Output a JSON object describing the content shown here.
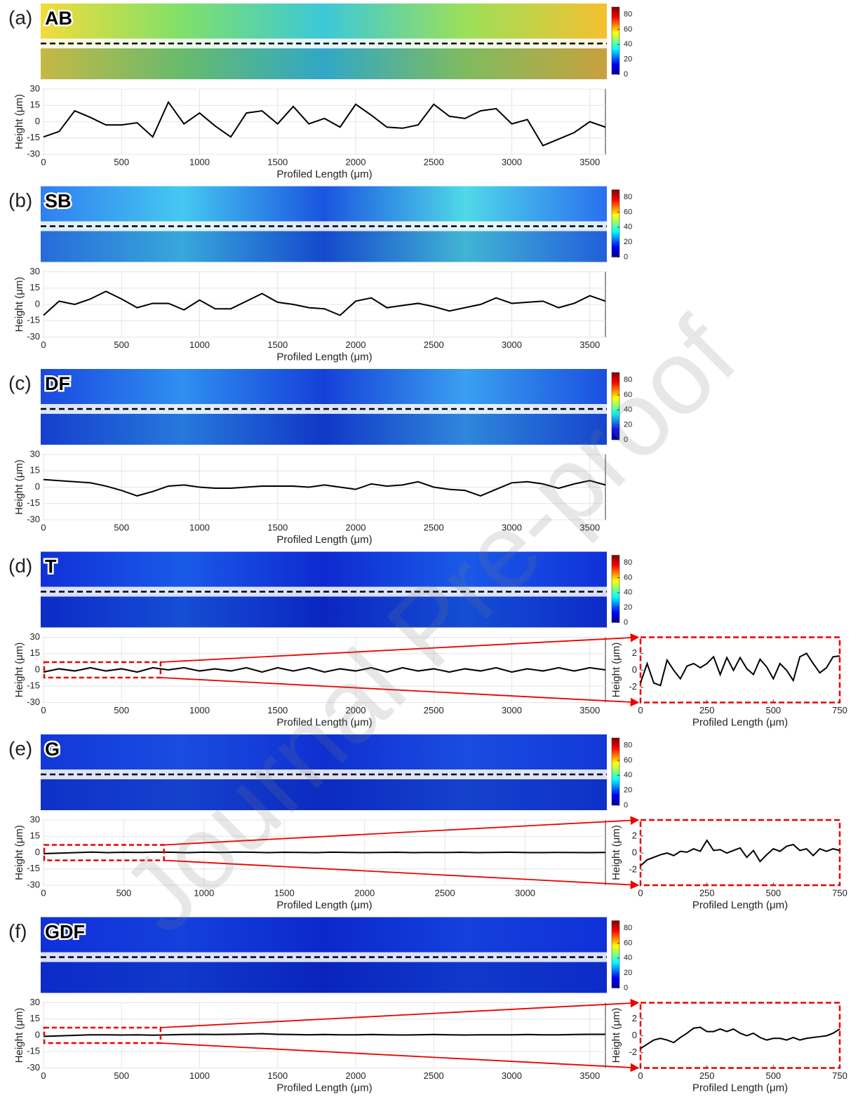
{
  "watermark": "Journal Pre-proof",
  "chart_data": [
    {
      "type": "line",
      "panel": "(a)",
      "sample": "AB",
      "heatmap_colors": [
        "#f2dc3a",
        "#7fe06a",
        "#3cc8d8",
        "#9be05a",
        "#f5c030"
      ],
      "colorbar_lim": [
        0,
        90
      ],
      "colorbar_ticks": [
        0,
        20,
        40,
        60,
        80
      ],
      "xlabel": "Profiled Length (μm)",
      "ylabel": "Height (μm)",
      "grid": true,
      "color": "#000000",
      "xlim": [
        0,
        3600
      ],
      "xticks": [
        0,
        500,
        1000,
        1500,
        2000,
        2500,
        3000,
        3500
      ],
      "ylim": [
        -30,
        30
      ],
      "yticks": [
        -30,
        -15,
        0,
        15,
        30
      ],
      "x": [
        0,
        100,
        200,
        300,
        400,
        500,
        600,
        700,
        800,
        900,
        1000,
        1100,
        1200,
        1300,
        1400,
        1500,
        1600,
        1700,
        1800,
        1900,
        2000,
        2100,
        2200,
        2300,
        2400,
        2500,
        2600,
        2700,
        2800,
        2900,
        3000,
        3100,
        3200,
        3300,
        3400,
        3500,
        3600
      ],
      "values": [
        -14,
        -9,
        10,
        4,
        -3,
        -3,
        -1,
        -14,
        18,
        -2,
        8,
        -4,
        -14,
        8,
        10,
        -2,
        14,
        -2,
        3,
        -5,
        16,
        6,
        -5,
        -6,
        -3,
        16,
        5,
        3,
        10,
        12,
        -2,
        2,
        -22,
        -16,
        -10,
        0,
        -5
      ]
    },
    {
      "type": "line",
      "panel": "(b)",
      "sample": "SB",
      "heatmap_colors": [
        "#2f7ff0",
        "#45c8f0",
        "#1a55e0",
        "#50d8e8",
        "#2a6ff0"
      ],
      "colorbar_lim": [
        0,
        90
      ],
      "colorbar_ticks": [
        0,
        20,
        40,
        60,
        80
      ],
      "xlabel": "Profiled Length (μm)",
      "ylabel": "Height (μm)",
      "grid": true,
      "color": "#000000",
      "xlim": [
        0,
        3600
      ],
      "xticks": [
        0,
        500,
        1000,
        1500,
        2000,
        2500,
        3000,
        3500
      ],
      "ylim": [
        -30,
        30
      ],
      "yticks": [
        -30,
        -15,
        0,
        15,
        30
      ],
      "x": [
        0,
        100,
        200,
        300,
        400,
        500,
        600,
        700,
        800,
        900,
        1000,
        1100,
        1200,
        1300,
        1400,
        1500,
        1600,
        1700,
        1800,
        1900,
        2000,
        2100,
        2200,
        2300,
        2400,
        2500,
        2600,
        2700,
        2800,
        2900,
        3000,
        3100,
        3200,
        3300,
        3400,
        3500,
        3600
      ],
      "values": [
        -10,
        3,
        0,
        5,
        12,
        5,
        -3,
        1,
        1,
        -5,
        4,
        -4,
        -4,
        3,
        10,
        2,
        0,
        -3,
        -4,
        -10,
        3,
        6,
        -3,
        -1,
        1,
        -2,
        -6,
        -3,
        0,
        6,
        1,
        2,
        3,
        -3,
        1,
        8,
        3
      ]
    },
    {
      "type": "line",
      "panel": "(c)",
      "sample": "DF",
      "heatmap_colors": [
        "#1a48e0",
        "#2f8ff0",
        "#1540d8",
        "#3aa0f0",
        "#1a50e0"
      ],
      "colorbar_lim": [
        0,
        90
      ],
      "colorbar_ticks": [
        0,
        20,
        40,
        60,
        80
      ],
      "xlabel": "Profiled Length (μm)",
      "ylabel": "Height (μm)",
      "grid": true,
      "color": "#000000",
      "xlim": [
        0,
        3600
      ],
      "xticks": [
        0,
        500,
        1000,
        1500,
        2000,
        2500,
        3000,
        3500
      ],
      "ylim": [
        -30,
        30
      ],
      "yticks": [
        -30,
        -15,
        0,
        15,
        30
      ],
      "x": [
        0,
        100,
        200,
        300,
        400,
        500,
        600,
        700,
        800,
        900,
        1000,
        1100,
        1200,
        1300,
        1400,
        1500,
        1600,
        1700,
        1800,
        1900,
        2000,
        2100,
        2200,
        2300,
        2400,
        2500,
        2600,
        2700,
        2800,
        2900,
        3000,
        3100,
        3200,
        3300,
        3400,
        3500,
        3600
      ],
      "values": [
        7,
        6,
        5,
        4,
        1,
        -3,
        -8,
        -4,
        1,
        2,
        0,
        -1,
        -1,
        0,
        1,
        1,
        1,
        0,
        2,
        0,
        -2,
        3,
        1,
        2,
        5,
        0,
        -2,
        -3,
        -8,
        -2,
        4,
        5,
        3,
        -1,
        3,
        6,
        2
      ]
    },
    {
      "type": "line",
      "panel": "(d)",
      "sample": "T",
      "heatmap_colors": [
        "#1030d8",
        "#1a5ae8",
        "#0e2ad0",
        "#1a5ae8",
        "#1030d8"
      ],
      "colorbar_lim": [
        0,
        90
      ],
      "colorbar_ticks": [
        0,
        20,
        40,
        60,
        80
      ],
      "xlabel": "Profiled Length (μm)",
      "ylabel": "Height (μm)",
      "grid": true,
      "color": "#000000",
      "xlim": [
        0,
        3600
      ],
      "xticks": [
        0,
        500,
        1000,
        1500,
        2000,
        2500,
        3000,
        3500
      ],
      "ylim": [
        -30,
        30
      ],
      "yticks": [
        -30,
        -15,
        0,
        15,
        30
      ],
      "x": [
        0,
        100,
        200,
        300,
        400,
        500,
        600,
        700,
        800,
        900,
        1000,
        1100,
        1200,
        1300,
        1400,
        1500,
        1600,
        1700,
        1800,
        1900,
        2000,
        2100,
        2200,
        2300,
        2400,
        2500,
        2600,
        2700,
        2800,
        2900,
        3000,
        3100,
        3200,
        3300,
        3400,
        3500,
        3600
      ],
      "values": [
        -2,
        1,
        -1,
        2,
        -1,
        1,
        -2,
        2,
        0,
        2,
        -1,
        1,
        -1,
        2,
        -2,
        2,
        -1,
        2,
        -2,
        1,
        -1,
        2,
        -2,
        2,
        -1,
        1,
        -2,
        1,
        -1,
        2,
        -2,
        1,
        -1,
        2,
        -1,
        2,
        0
      ],
      "inset": {
        "type": "line",
        "xlabel": "Profiled Length (μm)",
        "ylabel": "Height (μm)",
        "grid": false,
        "color": "#000000",
        "xlim": [
          0,
          750
        ],
        "xticks": [
          0,
          250,
          500,
          750
        ],
        "ylim": [
          -3.8,
          3.9
        ],
        "yticks": [
          -2,
          0,
          2
        ],
        "x": [
          0,
          25,
          50,
          75,
          100,
          125,
          150,
          175,
          200,
          225,
          250,
          275,
          300,
          325,
          350,
          375,
          400,
          425,
          450,
          475,
          500,
          525,
          550,
          575,
          600,
          625,
          650,
          675,
          700,
          725,
          750
        ],
        "values": [
          -1.5,
          0.8,
          -1.5,
          -1.8,
          1.2,
          0,
          -1,
          0.5,
          0.8,
          0.3,
          0.8,
          1.6,
          -0.5,
          1.5,
          0,
          1.5,
          0.2,
          -0.5,
          1.3,
          0.4,
          -1,
          0.8,
          0,
          -1.2,
          1.6,
          2,
          0.8,
          -0.3,
          0.3,
          1.6,
          1.7
        ]
      }
    },
    {
      "type": "line",
      "panel": "(e)",
      "sample": "G",
      "heatmap_colors": [
        "#1238d8",
        "#1a4ce0",
        "#0f30d0",
        "#1a4ce0",
        "#1238d8"
      ],
      "colorbar_lim": [
        0,
        90
      ],
      "colorbar_ticks": [
        0,
        20,
        40,
        60,
        80
      ],
      "xlabel": "Profiled Length (μm)",
      "ylabel": "Height (μm)",
      "grid": true,
      "color": "#000000",
      "xlim": [
        0,
        3500
      ],
      "xticks": [
        0,
        500,
        1000,
        1500,
        2000,
        2500,
        3000
      ],
      "ylim": [
        -30,
        30
      ],
      "yticks": [
        -30,
        -15,
        0,
        15,
        30
      ],
      "x": [
        0,
        100,
        200,
        300,
        400,
        500,
        600,
        700,
        800,
        900,
        1000,
        1100,
        1200,
        1300,
        1400,
        1500,
        1600,
        1700,
        1800,
        1900,
        2000,
        2100,
        2200,
        2300,
        2400,
        2500,
        2600,
        2700,
        2800,
        2900,
        3000,
        3100,
        3200,
        3300,
        3400,
        3500
      ],
      "values": [
        -1,
        -0.5,
        0,
        0.5,
        0,
        0.3,
        0.2,
        0.5,
        0.3,
        0,
        0.4,
        0.2,
        0.5,
        0.3,
        0,
        0.3,
        0.2,
        0,
        0.4,
        0.2,
        0,
        0.2,
        0.3,
        0,
        0.2,
        0.1,
        0.3,
        0,
        0.2,
        0.3,
        0.1,
        0,
        0.2,
        0.1,
        0,
        0.2
      ],
      "inset": {
        "type": "line",
        "xlabel": "Profiled Length (μm)",
        "ylabel": "Height (μm)",
        "grid": false,
        "color": "#000000",
        "xlim": [
          0,
          750
        ],
        "xticks": [
          0,
          250,
          500,
          750
        ],
        "ylim": [
          -3.8,
          3.9
        ],
        "yticks": [
          -2,
          0,
          2
        ],
        "x": [
          0,
          25,
          50,
          75,
          100,
          125,
          150,
          175,
          200,
          225,
          250,
          275,
          300,
          325,
          350,
          375,
          400,
          425,
          450,
          475,
          500,
          525,
          550,
          575,
          600,
          625,
          650,
          675,
          700,
          725,
          750
        ],
        "values": [
          -1.5,
          -0.8,
          -0.5,
          -0.2,
          0,
          -0.3,
          0.2,
          0.1,
          0.5,
          0.2,
          1.5,
          0.3,
          0.4,
          0,
          0.3,
          0.6,
          -0.5,
          0.3,
          -1,
          -0.2,
          0.5,
          0.2,
          0.8,
          1,
          0.3,
          0.5,
          -0.3,
          0.5,
          0.2,
          0.5,
          0.3
        ]
      }
    },
    {
      "type": "line",
      "panel": "(f)",
      "sample": "GDF",
      "heatmap_colors": [
        "#1030d8",
        "#1440dc",
        "#0c28cc",
        "#1440dc",
        "#1030d8"
      ],
      "colorbar_lim": [
        0,
        90
      ],
      "colorbar_ticks": [
        0,
        20,
        40,
        60,
        80
      ],
      "xlabel": "Profiled Length (μm)",
      "ylabel": "Height (μm)",
      "grid": true,
      "color": "#000000",
      "xlim": [
        0,
        3600
      ],
      "xticks": [
        0,
        500,
        1000,
        1500,
        2000,
        2500,
        3000,
        3500
      ],
      "ylim": [
        -30,
        30
      ],
      "yticks": [
        -30,
        -15,
        0,
        15,
        30
      ],
      "x": [
        0,
        100,
        200,
        300,
        400,
        500,
        600,
        700,
        800,
        900,
        1000,
        1100,
        1200,
        1300,
        1400,
        1500,
        1600,
        1700,
        1800,
        1900,
        2000,
        2100,
        2200,
        2300,
        2400,
        2500,
        2600,
        2700,
        2800,
        2900,
        3000,
        3100,
        3200,
        3300,
        3400,
        3500,
        3600
      ],
      "values": [
        -1,
        -0.5,
        0,
        0.5,
        0.5,
        0.3,
        0.5,
        0.2,
        0.5,
        0.8,
        1,
        0.8,
        1,
        1.2,
        1.5,
        1,
        0.8,
        0.5,
        0.8,
        0.5,
        0.5,
        0.8,
        0.5,
        0.3,
        0.5,
        0.8,
        0.5,
        0.3,
        0.5,
        0.5,
        0.5,
        0.8,
        0.5,
        0.5,
        0.8,
        1,
        1
      ],
      "inset": {
        "type": "line",
        "xlabel": "Profiled Length (μm)",
        "ylabel": "Height (μm)",
        "grid": false,
        "color": "#000000",
        "xlim": [
          0,
          750
        ],
        "xticks": [
          0,
          250,
          500,
          750
        ],
        "ylim": [
          -3.8,
          3.9
        ],
        "yticks": [
          -2,
          0,
          2
        ],
        "x": [
          0,
          25,
          50,
          75,
          100,
          125,
          150,
          175,
          200,
          225,
          250,
          275,
          300,
          325,
          350,
          375,
          400,
          425,
          450,
          475,
          500,
          525,
          550,
          575,
          600,
          625,
          650,
          675,
          700,
          725,
          750
        ],
        "values": [
          -1.5,
          -1,
          -0.5,
          -0.3,
          -0.5,
          -0.8,
          -0.2,
          0.3,
          0.9,
          1,
          0.5,
          0.5,
          0.8,
          0.5,
          0.8,
          0.3,
          0,
          0.3,
          -0.2,
          -0.5,
          -0.3,
          -0.3,
          -0.5,
          -0.2,
          -0.5,
          -0.3,
          -0.2,
          -0.1,
          0,
          0.3,
          0.8
        ]
      }
    }
  ]
}
